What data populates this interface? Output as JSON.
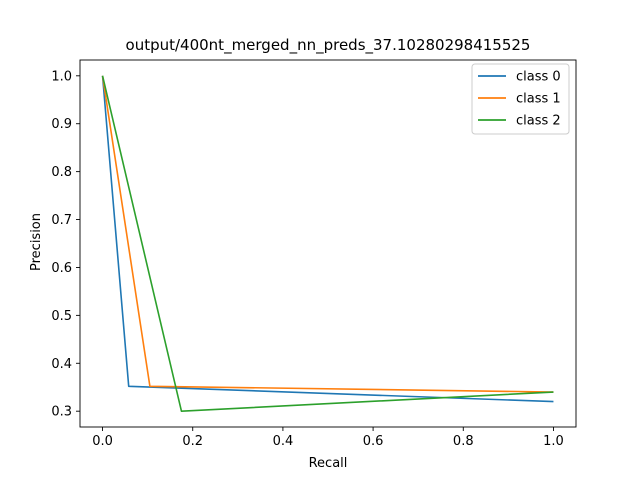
{
  "chart_data": {
    "type": "line",
    "title": "output/400nt_merged_nn_preds_37.10280298415525",
    "xlabel": "Recall",
    "ylabel": "Precision",
    "xlim": [
      -0.05,
      1.05
    ],
    "ylim": [
      0.267,
      1.033
    ],
    "xticks": [
      "0.0",
      "0.2",
      "0.4",
      "0.6",
      "0.8",
      "1.0"
    ],
    "yticks": [
      "0.3",
      "0.4",
      "0.5",
      "0.6",
      "0.7",
      "0.8",
      "0.9",
      "1.0"
    ],
    "grid": false,
    "legend_position": "top-right",
    "series": [
      {
        "name": "class 0",
        "color": "#1f77b4",
        "x": [
          0.0,
          0.058,
          1.0
        ],
        "y": [
          1.0,
          0.352,
          0.32
        ]
      },
      {
        "name": "class 1",
        "color": "#ff7f0e",
        "x": [
          0.0,
          0.105,
          1.0
        ],
        "y": [
          1.0,
          0.352,
          0.34
        ]
      },
      {
        "name": "class 2",
        "color": "#2ca02c",
        "x": [
          0.0,
          0.175,
          1.0
        ],
        "y": [
          1.0,
          0.3,
          0.34
        ]
      }
    ]
  }
}
